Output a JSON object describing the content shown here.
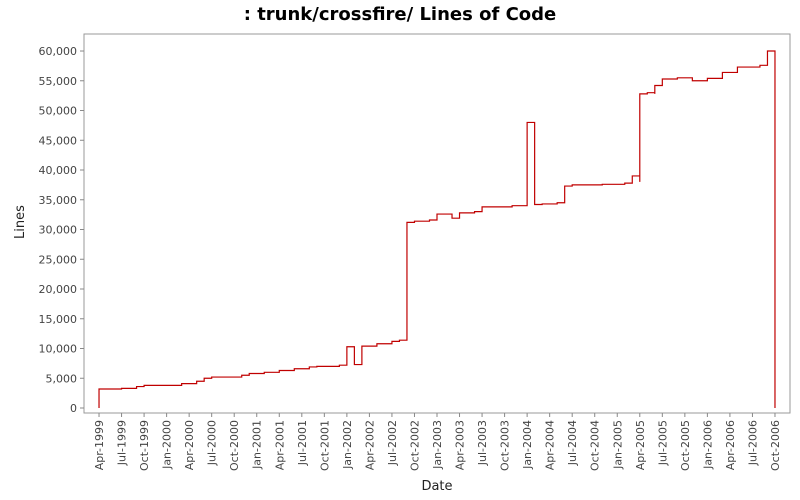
{
  "chart_data": {
    "type": "step",
    "title": ": trunk/crossfire/ Lines of Code",
    "x_label": "Date",
    "y_label": "Lines",
    "x": [
      "1999-04",
      "1999-04",
      "1999-07",
      "1999-09",
      "1999-10",
      "2000-03",
      "2000-05",
      "2000-06",
      "2000-07",
      "2000-11",
      "2000-12",
      "2001-02",
      "2001-04",
      "2001-06",
      "2001-08",
      "2001-09",
      "2001-12",
      "2002-01",
      "2002-02",
      "2002-03",
      "2002-05",
      "2002-07",
      "2002-08",
      "2002-09",
      "2002-10",
      "2002-12",
      "2003-01",
      "2003-03",
      "2003-04",
      "2003-06",
      "2003-07",
      "2003-11",
      "2004-01",
      "2004-01",
      "2004-02",
      "2004-03",
      "2004-05",
      "2004-06",
      "2004-07",
      "2004-11",
      "2005-02",
      "2005-03",
      "2005-04",
      "2005-04",
      "2005-05",
      "2005-06",
      "2005-06",
      "2005-07",
      "2005-09",
      "2005-11",
      "2006-01",
      "2006-03",
      "2006-05",
      "2006-08",
      "2006-09",
      "2006-10"
    ],
    "values": [
      0,
      3200,
      3300,
      3600,
      3800,
      4100,
      4500,
      5000,
      5200,
      5500,
      5800,
      6000,
      6300,
      6600,
      6900,
      7000,
      7200,
      10300,
      7300,
      10400,
      10800,
      11200,
      11400,
      31200,
      31400,
      31600,
      32600,
      31900,
      32800,
      33000,
      33800,
      34000,
      34200,
      48000,
      34200,
      34300,
      34500,
      37300,
      37500,
      37600,
      37800,
      39000,
      38000,
      52800,
      53000,
      52800,
      54200,
      55300,
      55500,
      55000,
      55400,
      56400,
      57300,
      57600,
      60000,
      0
    ],
    "color": "#c00000",
    "xlim": [
      "1999-02",
      "2006-12"
    ],
    "xticks": [
      {
        "value": "1999-04",
        "label": "Apr-1999"
      },
      {
        "value": "1999-07",
        "label": "Jul-1999"
      },
      {
        "value": "1999-10",
        "label": "Oct-1999"
      },
      {
        "value": "2000-01",
        "label": "Jan-2000"
      },
      {
        "value": "2000-04",
        "label": "Apr-2000"
      },
      {
        "value": "2000-07",
        "label": "Jul-2000"
      },
      {
        "value": "2000-10",
        "label": "Oct-2000"
      },
      {
        "value": "2001-01",
        "label": "Jan-2001"
      },
      {
        "value": "2001-04",
        "label": "Apr-2001"
      },
      {
        "value": "2001-07",
        "label": "Jul-2001"
      },
      {
        "value": "2001-10",
        "label": "Oct-2001"
      },
      {
        "value": "2002-01",
        "label": "Jan-2002"
      },
      {
        "value": "2002-04",
        "label": "Apr-2002"
      },
      {
        "value": "2002-07",
        "label": "Jul-2002"
      },
      {
        "value": "2002-10",
        "label": "Oct-2002"
      },
      {
        "value": "2003-01",
        "label": "Jan-2003"
      },
      {
        "value": "2003-04",
        "label": "Apr-2003"
      },
      {
        "value": "2003-07",
        "label": "Jul-2003"
      },
      {
        "value": "2003-10",
        "label": "Oct-2003"
      },
      {
        "value": "2004-01",
        "label": "Jan-2004"
      },
      {
        "value": "2004-04",
        "label": "Apr-2004"
      },
      {
        "value": "2004-07",
        "label": "Jul-2004"
      },
      {
        "value": "2004-10",
        "label": "Oct-2004"
      },
      {
        "value": "2005-01",
        "label": "Jan-2005"
      },
      {
        "value": "2005-04",
        "label": "Apr-2005"
      },
      {
        "value": "2005-07",
        "label": "Jul-2005"
      },
      {
        "value": "2005-10",
        "label": "Oct-2005"
      },
      {
        "value": "2006-01",
        "label": "Jan-2006"
      },
      {
        "value": "2006-04",
        "label": "Apr-2006"
      },
      {
        "value": "2006-07",
        "label": "Jul-2006"
      },
      {
        "value": "2006-10",
        "label": "Oct-2006"
      }
    ],
    "ylim": [
      -840,
      62860
    ],
    "yticks": [
      0,
      {
        "value": 5000,
        "label": "5,000"
      },
      {
        "value": 10000,
        "label": "10,000"
      },
      {
        "value": 15000,
        "label": "15,000"
      },
      {
        "value": 20000,
        "label": "20,000"
      },
      {
        "value": 25000,
        "label": "25,000"
      },
      {
        "value": 30000,
        "label": "30,000"
      },
      {
        "value": 35000,
        "label": "35,000"
      },
      {
        "value": 40000,
        "label": "40,000"
      },
      {
        "value": 45000,
        "label": "45,000"
      },
      {
        "value": 50000,
        "label": "50,000"
      },
      {
        "value": 55000,
        "label": "55,000"
      },
      {
        "value": 60000,
        "label": "60,000"
      }
    ]
  }
}
